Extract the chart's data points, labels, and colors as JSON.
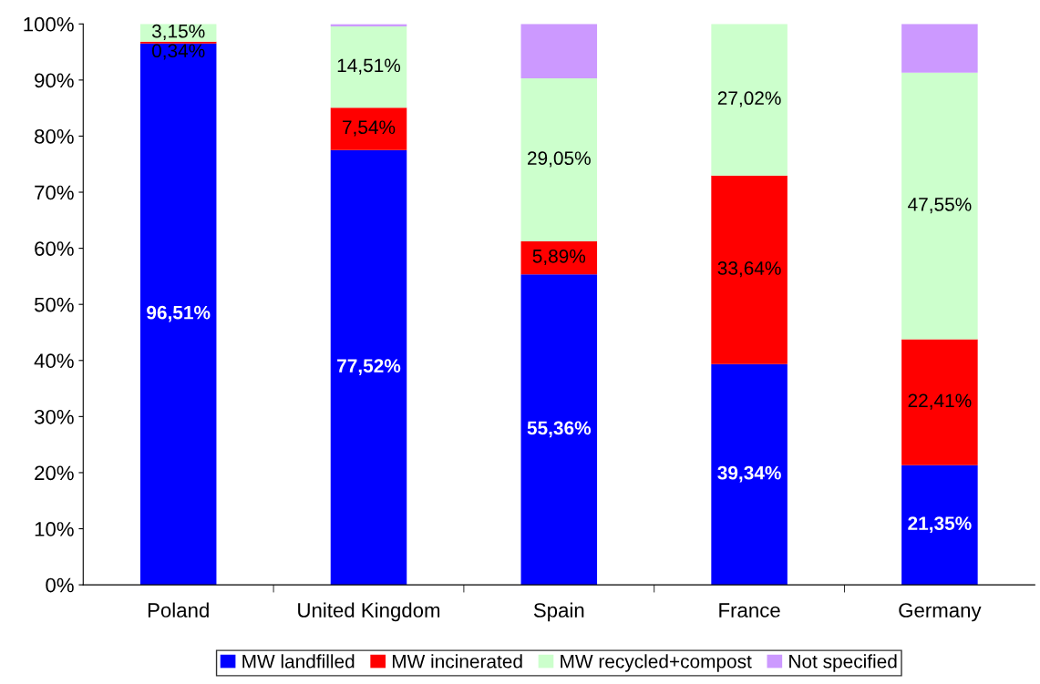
{
  "chart_data": {
    "type": "bar",
    "stacked": true,
    "categories": [
      "Poland",
      "United Kingdom",
      "Spain",
      "France",
      "Germany"
    ],
    "series": [
      {
        "name": "MW landfilled",
        "color": "#0000ff",
        "values": [
          96.51,
          77.52,
          55.36,
          39.34,
          21.35
        ],
        "value_labels": [
          "96,51%",
          "77,52%",
          "55,36%",
          "39,34%",
          "21,35%"
        ]
      },
      {
        "name": "MW incinerated",
        "color": "#ff0000",
        "values": [
          0.34,
          7.54,
          5.89,
          33.64,
          22.41
        ],
        "value_labels": [
          "0,34%",
          "7,54%",
          "5,89%",
          "33,64%",
          "22,41%"
        ]
      },
      {
        "name": "MW recycled+compost",
        "color": "#ccffcc",
        "values": [
          3.15,
          14.51,
          29.05,
          27.02,
          47.55
        ],
        "value_labels": [
          "3,15%",
          "14,51%",
          "29,05%",
          "27,02%",
          "47,55%"
        ]
      },
      {
        "name": "Not specified",
        "color": "#cc99ff",
        "values": [
          0,
          0.4,
          9.7,
          0,
          8.7
        ],
        "value_labels": [
          null,
          null,
          null,
          null,
          null
        ]
      }
    ],
    "ylim": [
      0,
      100
    ],
    "yticks": [
      {
        "value": 0,
        "label": "0%"
      },
      {
        "value": 10,
        "label": "10%"
      },
      {
        "value": 20,
        "label": "20%"
      },
      {
        "value": 30,
        "label": "30%"
      },
      {
        "value": 40,
        "label": "40%"
      },
      {
        "value": 50,
        "label": "50%"
      },
      {
        "value": 60,
        "label": "60%"
      },
      {
        "value": 70,
        "label": "70%"
      },
      {
        "value": 80,
        "label": "80%"
      },
      {
        "value": 90,
        "label": "90%"
      },
      {
        "value": 100,
        "label": "100%"
      }
    ],
    "grid": false,
    "legend": "bottom"
  }
}
